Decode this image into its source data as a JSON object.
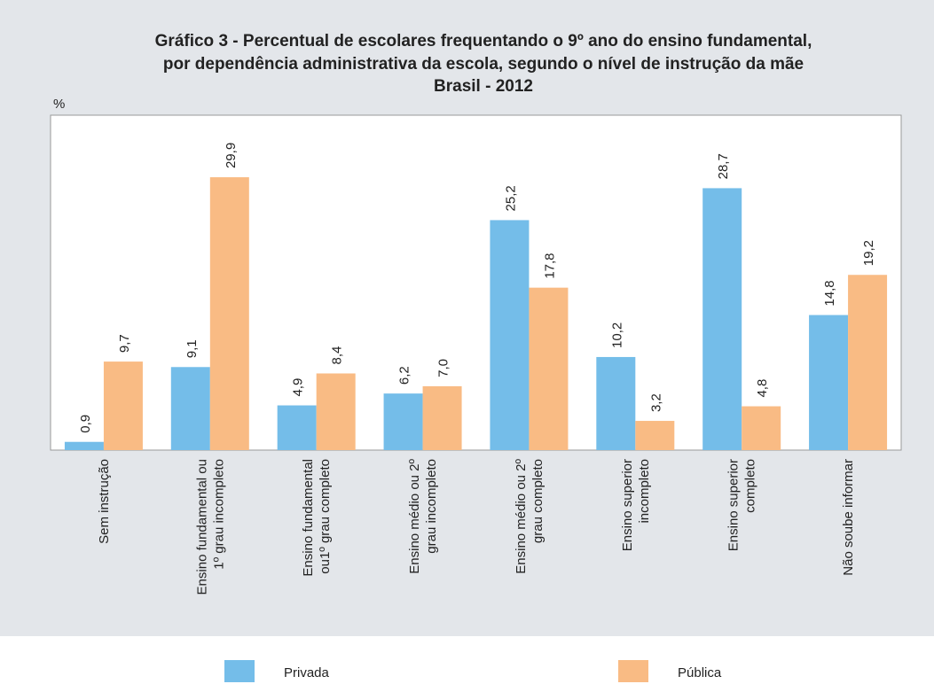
{
  "chart_data": {
    "type": "bar",
    "title": [
      "Gráfico 3 - Percentual de escolares frequentando o 9º ano do ensino fundamental,",
      "por dependência administrativa da escola, segundo o nível de instrução da mãe"
    ],
    "subtitle": "Brasil - 2012",
    "y_label": "%",
    "categories": [
      [
        "Sem instrução"
      ],
      [
        "Ensino fundamental ou",
        "1º grau incompleto"
      ],
      [
        "Ensino fundamental",
        "ou1º grau completo"
      ],
      [
        "Ensino médio ou 2º",
        "grau incompleto"
      ],
      [
        "Ensino médio ou 2º",
        "grau completo"
      ],
      [
        "Ensino superior",
        "incompleto"
      ],
      [
        "Ensino superior",
        "completo"
      ],
      [
        "Não soube informar"
      ]
    ],
    "series": [
      {
        "name": "Privada",
        "color": "#74bde9",
        "values": [
          0.9,
          9.1,
          4.9,
          6.2,
          25.2,
          10.2,
          28.7,
          14.8
        ],
        "value_labels": [
          "0,9",
          "9,1",
          "4,9",
          "6,2",
          "25,2",
          "10,2",
          "28,7",
          "14,8"
        ]
      },
      {
        "name": "Pública",
        "color": "#f9bb84",
        "values": [
          9.7,
          29.9,
          8.4,
          7.0,
          17.8,
          3.2,
          4.8,
          19.2
        ],
        "value_labels": [
          "9,7",
          "29,9",
          "8,4",
          "7,0",
          "17,8",
          "3,2",
          "4,8",
          "19,2"
        ]
      }
    ],
    "ylim": [
      0,
      36.7
    ],
    "legend": "bottom"
  }
}
